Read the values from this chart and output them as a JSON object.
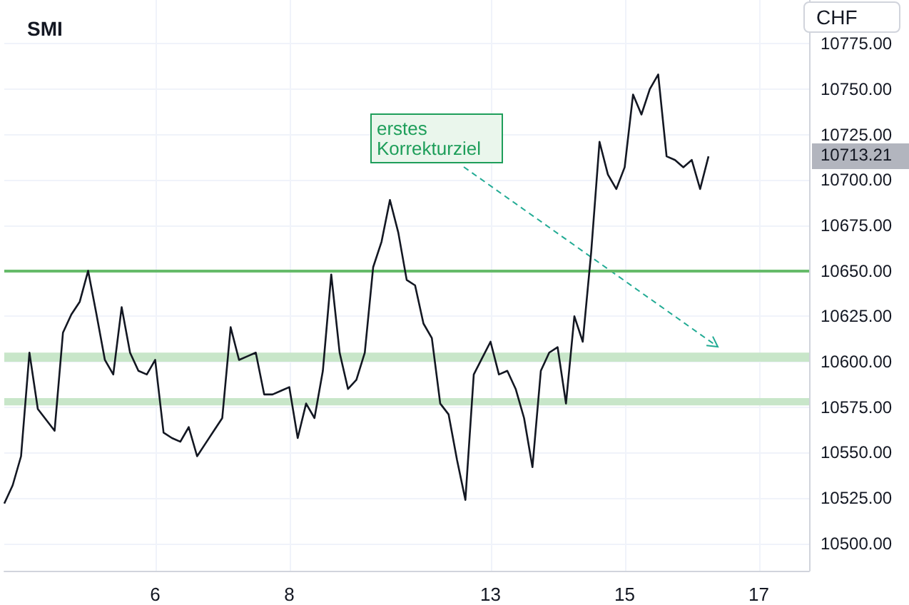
{
  "chart_data": {
    "type": "line",
    "title": "SMI",
    "ylabel": "CHF",
    "categories": [
      null,
      null,
      null,
      null,
      null,
      null,
      null,
      null,
      null,
      null,
      null,
      null,
      null,
      null,
      null,
      null,
      null,
      null,
      "6",
      null,
      null,
      null,
      null,
      null,
      null,
      null,
      null,
      null,
      null,
      null,
      null,
      null,
      null,
      null,
      "8",
      null,
      null,
      null,
      null,
      null,
      null,
      null,
      null,
      null,
      null,
      null,
      null,
      null,
      null,
      null,
      null,
      null,
      null,
      null,
      null,
      null,
      null,
      null,
      "13",
      null,
      null,
      null,
      null,
      null,
      null,
      null,
      null,
      null,
      null,
      null,
      null,
      null,
      null,
      null,
      "15",
      null,
      null,
      null,
      null,
      null,
      null,
      null,
      null,
      null,
      null,
      null,
      null,
      null,
      null,
      null,
      "17",
      null,
      null,
      null,
      null,
      null,
      null
    ],
    "series": [
      {
        "color": "#131722",
        "values": [
          10522,
          10532,
          10548,
          10605,
          10574,
          10568,
          10562,
          10616,
          10626,
          10633,
          10650,
          10626,
          10601,
          10593,
          10630,
          10605,
          10595,
          10593,
          10601,
          10561,
          10558,
          10556,
          10564,
          10548,
          10555,
          10562,
          10569,
          10619,
          10601,
          10603,
          10605,
          10582,
          10582,
          10584,
          10586,
          10558,
          10577,
          10569,
          10595,
          10648,
          10605,
          10585,
          10590,
          10605,
          10652,
          10666,
          10689,
          10671,
          10645,
          10642,
          10621,
          10613,
          10577,
          10571,
          10546,
          10524,
          10593,
          10602,
          10611,
          10593,
          10595,
          10585,
          10569,
          10542,
          10595,
          10605,
          10608,
          10577,
          10625,
          10611,
          10660,
          10721,
          10703,
          10695,
          10707,
          10747,
          10736,
          10750,
          10758,
          10713,
          10711,
          10707,
          10711,
          10695,
          10713,
          null,
          null,
          null,
          null,
          null,
          null,
          null,
          null,
          null,
          null,
          null,
          null
        ]
      }
    ],
    "ylim": [
      10485,
      10799
    ],
    "yticks": [
      {
        "value": 10500,
        "label": "10500.00"
      },
      {
        "value": 10525,
        "label": "10525.00"
      },
      {
        "value": 10550,
        "label": "10550.00"
      },
      {
        "value": 10575,
        "label": "10575.00"
      },
      {
        "value": 10600,
        "label": "10600.00"
      },
      {
        "value": 10625,
        "label": "10625.00"
      },
      {
        "value": 10650,
        "label": "10650.00"
      },
      {
        "value": 10675,
        "label": "10675.00"
      },
      {
        "value": 10700,
        "label": "10700.00"
      },
      {
        "value": 10725,
        "label": "10725.00"
      },
      {
        "value": 10750,
        "label": "10750.00"
      },
      {
        "value": 10775,
        "label": "10775.00"
      }
    ],
    "ref_lines": [
      {
        "axis": "y",
        "value": 10650,
        "color": "#66bb6a"
      }
    ],
    "bands": [
      {
        "axis": "y",
        "from": 10600,
        "to": 10605,
        "color": "#c8e6c9"
      },
      {
        "axis": "y",
        "from": 10576,
        "to": 10580,
        "color": "#c8e6c9"
      }
    ],
    "annotations": [
      "erstes\nKorrekturziel",
      "10713.21"
    ],
    "grid": true
  }
}
